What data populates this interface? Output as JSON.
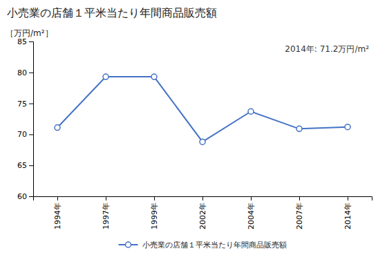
{
  "chart_data": {
    "type": "line",
    "title": "小売業の店舗１平米当たり年間商品販売額",
    "ylabel": "［万円/m²］",
    "annotation": "2014年: 71.2万円/m²",
    "categories": [
      "1994年",
      "1997年",
      "1999年",
      "2002年",
      "2004年",
      "2007年",
      "2014年"
    ],
    "series": [
      {
        "name": "小売業の店舗１平米当たり年間商品販売額",
        "color": "#4472C4",
        "marker": "circle",
        "values": [
          71.1,
          79.3,
          79.3,
          68.8,
          73.7,
          70.9,
          71.2
        ]
      }
    ],
    "ylim": [
      60,
      85
    ],
    "yticks": [
      60,
      65,
      70,
      75,
      80,
      85
    ],
    "grid": false,
    "legend": "bottom"
  }
}
